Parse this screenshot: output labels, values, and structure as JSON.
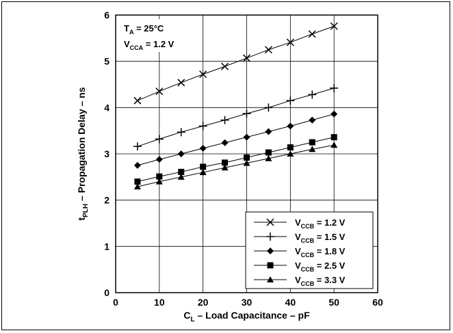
{
  "chart_data": {
    "type": "line",
    "xlabel": {
      "main": "C",
      "sub": "L",
      "rest": " – Load Capacitance – pF"
    },
    "ylabel": {
      "main": "t",
      "sub": "PLH",
      "rest": " – Propagation Delay – ns"
    },
    "xlim": [
      0,
      60
    ],
    "ylim": [
      0,
      6
    ],
    "xticks": [
      0,
      10,
      20,
      30,
      40,
      50,
      60
    ],
    "yticks": [
      0,
      1,
      2,
      3,
      4,
      5,
      6
    ],
    "grid": true,
    "legend_position": "bottom-right",
    "annotations": [
      {
        "main": "T",
        "sub": "A",
        "rest": " = 25°C"
      },
      {
        "main": "V",
        "sub": "CCA",
        "rest": " = 1.2 V"
      }
    ],
    "x": [
      5,
      10,
      15,
      20,
      25,
      30,
      35,
      40,
      45,
      50
    ],
    "series": [
      {
        "name": {
          "main": "V",
          "sub": "CCB",
          "rest": " = 1.2 V"
        },
        "marker": "x",
        "values": [
          4.15,
          4.35,
          4.54,
          4.72,
          4.89,
          5.07,
          5.25,
          5.41,
          5.59,
          5.76
        ]
      },
      {
        "name": {
          "main": "V",
          "sub": "CCB",
          "rest": " = 1.5 V"
        },
        "marker": "plus",
        "values": [
          3.16,
          3.32,
          3.47,
          3.6,
          3.73,
          3.87,
          4.0,
          4.15,
          4.28,
          4.42
        ]
      },
      {
        "name": {
          "main": "V",
          "sub": "CCB",
          "rest": " = 1.8 V"
        },
        "marker": "diamond",
        "values": [
          2.75,
          2.88,
          3.0,
          3.12,
          3.24,
          3.36,
          3.48,
          3.6,
          3.73,
          3.86
        ]
      },
      {
        "name": {
          "main": "V",
          "sub": "CCB",
          "rest": " = 2.5 V"
        },
        "marker": "square",
        "values": [
          2.4,
          2.51,
          2.61,
          2.72,
          2.81,
          2.92,
          3.03,
          3.14,
          3.25,
          3.36
        ]
      },
      {
        "name": {
          "main": "V",
          "sub": "CCB",
          "rest": " = 3.3 V"
        },
        "marker": "triangle",
        "values": [
          2.29,
          2.4,
          2.5,
          2.6,
          2.7,
          2.8,
          2.9,
          3.0,
          3.1,
          3.19
        ]
      }
    ]
  }
}
